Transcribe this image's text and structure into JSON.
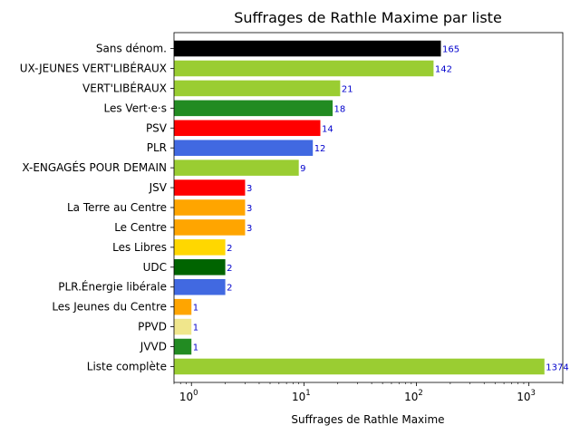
{
  "chart_data": {
    "type": "bar",
    "orientation": "horizontal",
    "title": "Suffrages de Rathle Maxime par liste",
    "xlabel": "Suffrages de Rathle Maxime",
    "ylabel": "",
    "x_scale": "log",
    "xlim": [
      0.7,
      2000
    ],
    "x_ticks": [
      {
        "value": 1,
        "base": "10",
        "exp": "0"
      },
      {
        "value": 10,
        "base": "10",
        "exp": "1"
      },
      {
        "value": 100,
        "base": "10",
        "exp": "2"
      },
      {
        "value": 1000,
        "base": "10",
        "exp": "3"
      }
    ],
    "grid": false,
    "bars": [
      {
        "label": "Sans dénom.",
        "value": 165,
        "color": "#000000"
      },
      {
        "label": "UX-JEUNES VERT'LIBÉRAUX",
        "value": 142,
        "color": "#9acd32"
      },
      {
        "label": "VERT'LIBÉRAUX",
        "value": 21,
        "color": "#9acd32"
      },
      {
        "label": "Les Vert·e·s",
        "value": 18,
        "color": "#228b22"
      },
      {
        "label": "PSV",
        "value": 14,
        "color": "#ff0000"
      },
      {
        "label": "PLR",
        "value": 12,
        "color": "#4169e1"
      },
      {
        "label": "X-ENGAGÉS POUR DEMAIN",
        "value": 9,
        "color": "#9acd32"
      },
      {
        "label": "JSV",
        "value": 3,
        "color": "#ff0000"
      },
      {
        "label": "La Terre au Centre",
        "value": 3,
        "color": "#ffa500"
      },
      {
        "label": "Le Centre",
        "value": 3,
        "color": "#ffa500"
      },
      {
        "label": "Les Libres",
        "value": 2,
        "color": "#ffd700"
      },
      {
        "label": "UDC",
        "value": 2,
        "color": "#006400"
      },
      {
        "label": "PLR.Énergie libérale",
        "value": 2,
        "color": "#4169e1"
      },
      {
        "label": "Les Jeunes du Centre",
        "value": 1,
        "color": "#ffa500"
      },
      {
        "label": "PPVD",
        "value": 1,
        "color": "#f0e68c"
      },
      {
        "label": "JVVD",
        "value": 1,
        "color": "#228b22"
      },
      {
        "label": "Liste complète",
        "value": 1374,
        "color": "#9acd32"
      }
    ]
  }
}
